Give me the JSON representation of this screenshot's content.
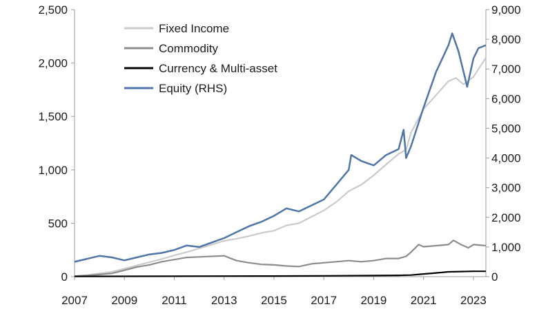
{
  "chart_data": {
    "type": "line",
    "title": "",
    "xlabel": "",
    "ylabel": "",
    "x_ticks": [
      "2007",
      "2009",
      "2011",
      "2013",
      "2015",
      "2017",
      "2019",
      "2021",
      "2023"
    ],
    "left_axis": {
      "ylim": [
        0,
        2500
      ],
      "ticks": [
        "0",
        "500",
        "1,000",
        "1,500",
        "2,000",
        "2,500"
      ]
    },
    "right_axis": {
      "ylim": [
        0,
        9000
      ],
      "ticks": [
        "0",
        "1,000",
        "2,000",
        "3,000",
        "4,000",
        "5,000",
        "6,000",
        "7,000",
        "8,000",
        "9,000"
      ]
    },
    "legend": {
      "placement": "top-left"
    },
    "grid": false,
    "series": [
      {
        "name": "Fixed Income",
        "axis": "left",
        "color": "#c8cacc",
        "points": [
          [
            2007.0,
            5
          ],
          [
            2007.5,
            15
          ],
          [
            2008.0,
            30
          ],
          [
            2008.5,
            45
          ],
          [
            2009.0,
            75
          ],
          [
            2009.5,
            105
          ],
          [
            2010.0,
            135
          ],
          [
            2010.5,
            165
          ],
          [
            2011.0,
            200
          ],
          [
            2011.5,
            230
          ],
          [
            2012.0,
            265
          ],
          [
            2012.5,
            300
          ],
          [
            2013.0,
            335
          ],
          [
            2013.5,
            355
          ],
          [
            2014.0,
            380
          ],
          [
            2014.5,
            410
          ],
          [
            2015.0,
            430
          ],
          [
            2015.5,
            480
          ],
          [
            2016.0,
            500
          ],
          [
            2016.5,
            560
          ],
          [
            2017.0,
            620
          ],
          [
            2017.5,
            700
          ],
          [
            2018.0,
            800
          ],
          [
            2018.5,
            860
          ],
          [
            2019.0,
            950
          ],
          [
            2019.5,
            1050
          ],
          [
            2020.0,
            1150
          ],
          [
            2020.3,
            1190
          ],
          [
            2020.5,
            1350
          ],
          [
            2021.0,
            1570
          ],
          [
            2021.5,
            1700
          ],
          [
            2022.0,
            1830
          ],
          [
            2022.3,
            1860
          ],
          [
            2022.6,
            1800
          ],
          [
            2023.0,
            1870
          ],
          [
            2023.5,
            2050
          ]
        ]
      },
      {
        "name": "Commodity",
        "axis": "left",
        "color": "#8c8c8c",
        "points": [
          [
            2007.0,
            5
          ],
          [
            2007.5,
            10
          ],
          [
            2008.0,
            20
          ],
          [
            2008.5,
            30
          ],
          [
            2009.0,
            60
          ],
          [
            2009.5,
            90
          ],
          [
            2010.0,
            110
          ],
          [
            2010.5,
            140
          ],
          [
            2011.0,
            160
          ],
          [
            2011.5,
            180
          ],
          [
            2012.0,
            185
          ],
          [
            2012.5,
            190
          ],
          [
            2013.0,
            195
          ],
          [
            2013.5,
            150
          ],
          [
            2014.0,
            130
          ],
          [
            2014.5,
            115
          ],
          [
            2015.0,
            110
          ],
          [
            2015.5,
            100
          ],
          [
            2016.0,
            95
          ],
          [
            2016.5,
            120
          ],
          [
            2017.0,
            130
          ],
          [
            2017.5,
            140
          ],
          [
            2018.0,
            150
          ],
          [
            2018.5,
            140
          ],
          [
            2019.0,
            150
          ],
          [
            2019.5,
            170
          ],
          [
            2020.0,
            170
          ],
          [
            2020.3,
            190
          ],
          [
            2020.5,
            230
          ],
          [
            2020.8,
            300
          ],
          [
            2021.0,
            280
          ],
          [
            2021.5,
            290
          ],
          [
            2022.0,
            300
          ],
          [
            2022.2,
            340
          ],
          [
            2022.5,
            300
          ],
          [
            2022.8,
            270
          ],
          [
            2023.0,
            300
          ],
          [
            2023.5,
            290
          ]
        ]
      },
      {
        "name": "Currency & Multi-asset",
        "axis": "left",
        "color": "#000000",
        "points": [
          [
            2007.0,
            2
          ],
          [
            2009.0,
            3
          ],
          [
            2011.0,
            4
          ],
          [
            2013.0,
            5
          ],
          [
            2015.0,
            6
          ],
          [
            2017.0,
            8
          ],
          [
            2019.0,
            10
          ],
          [
            2020.0,
            12
          ],
          [
            2020.5,
            15
          ],
          [
            2021.0,
            25
          ],
          [
            2021.5,
            35
          ],
          [
            2022.0,
            45
          ],
          [
            2022.5,
            48
          ],
          [
            2023.0,
            50
          ],
          [
            2023.5,
            50
          ]
        ]
      },
      {
        "name": "Equity (RHS)",
        "axis": "right",
        "color": "#4f74a8",
        "points": [
          [
            2007.0,
            500
          ],
          [
            2007.5,
            600
          ],
          [
            2008.0,
            700
          ],
          [
            2008.5,
            650
          ],
          [
            2009.0,
            550
          ],
          [
            2009.5,
            650
          ],
          [
            2010.0,
            750
          ],
          [
            2010.5,
            800
          ],
          [
            2011.0,
            900
          ],
          [
            2011.5,
            1050
          ],
          [
            2012.0,
            1000
          ],
          [
            2012.5,
            1150
          ],
          [
            2013.0,
            1300
          ],
          [
            2013.5,
            1500
          ],
          [
            2014.0,
            1700
          ],
          [
            2014.5,
            1850
          ],
          [
            2015.0,
            2050
          ],
          [
            2015.5,
            2300
          ],
          [
            2016.0,
            2200
          ],
          [
            2016.5,
            2400
          ],
          [
            2017.0,
            2600
          ],
          [
            2017.5,
            3100
          ],
          [
            2018.0,
            3600
          ],
          [
            2018.1,
            4100
          ],
          [
            2018.5,
            3900
          ],
          [
            2019.0,
            3750
          ],
          [
            2019.5,
            4100
          ],
          [
            2020.0,
            4300
          ],
          [
            2020.2,
            4950
          ],
          [
            2020.3,
            4000
          ],
          [
            2020.5,
            4400
          ],
          [
            2021.0,
            5700
          ],
          [
            2021.5,
            6900
          ],
          [
            2022.0,
            7800
          ],
          [
            2022.15,
            8200
          ],
          [
            2022.4,
            7600
          ],
          [
            2022.75,
            6400
          ],
          [
            2023.0,
            7350
          ],
          [
            2023.2,
            7700
          ],
          [
            2023.5,
            7800
          ]
        ]
      }
    ]
  }
}
